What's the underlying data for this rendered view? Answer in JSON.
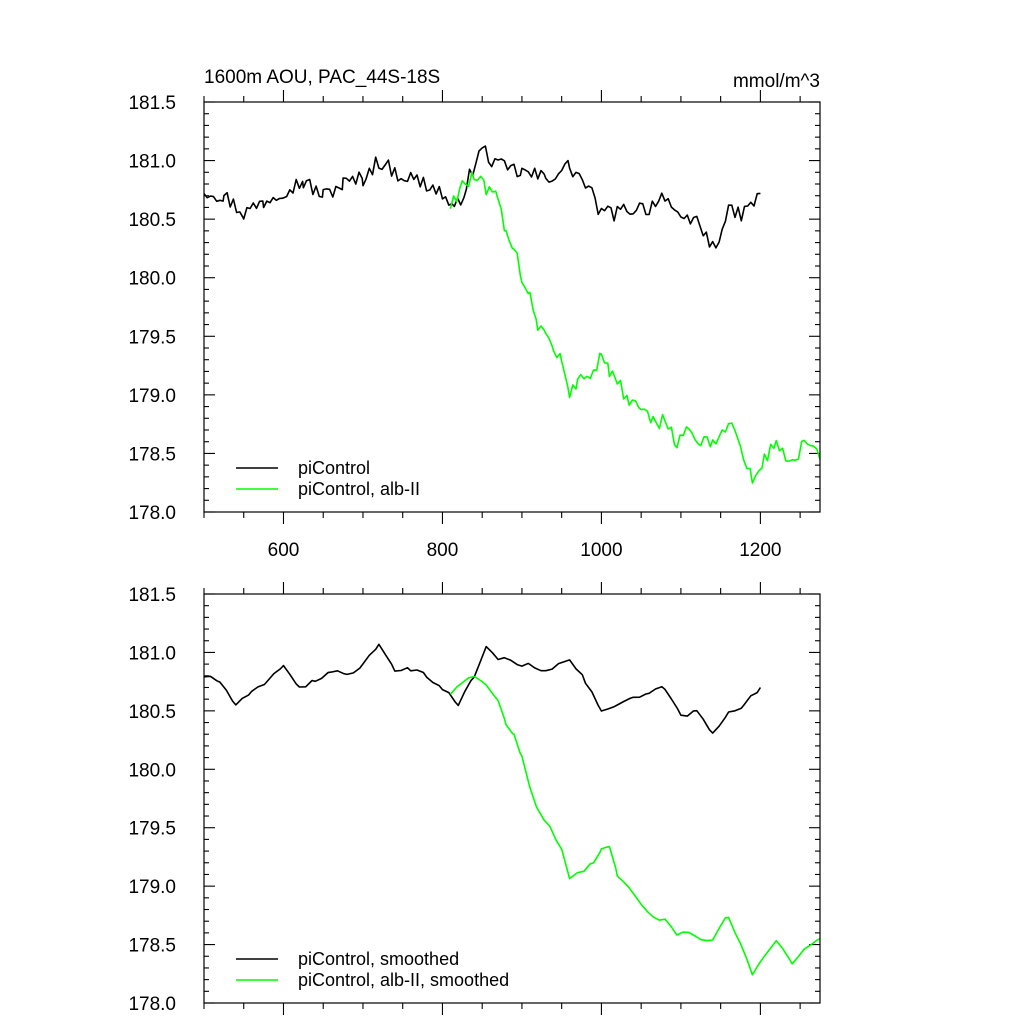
{
  "chart_data": [
    {
      "type": "line",
      "title_left": "1600m AOU, PAC_44S-18S",
      "title_right": "mmol/m^3",
      "xlabel": "",
      "ylabel": "",
      "xlim": [
        500,
        1275
      ],
      "ylim": [
        178.0,
        181.5
      ],
      "xticks": [
        600,
        800,
        1000,
        1200
      ],
      "xtick_labels": [
        "600",
        "800",
        "1000",
        "1200"
      ],
      "yticks": [
        178.0,
        178.5,
        179.0,
        179.5,
        180.0,
        180.5,
        181.0,
        181.5
      ],
      "ytick_labels": [
        "178.0",
        "178.5",
        "179.0",
        "179.5",
        "180.0",
        "180.5",
        "181.0",
        "181.5"
      ],
      "show_x_labels": true,
      "legend_position": "bottom-left",
      "series": [
        {
          "name": "piControl",
          "color": "#000000",
          "x": [
            500,
            525,
            550,
            575,
            600,
            625,
            650,
            675,
            700,
            720,
            740,
            760,
            780,
            800,
            815,
            830,
            850,
            870,
            900,
            930,
            960,
            980,
            1000,
            1020,
            1040,
            1060,
            1080,
            1100,
            1120,
            1140,
            1160,
            1180,
            1200
          ],
          "y": [
            180.75,
            180.7,
            180.55,
            180.65,
            180.75,
            180.82,
            180.7,
            180.8,
            180.85,
            181.0,
            180.9,
            180.85,
            180.8,
            180.72,
            180.55,
            180.8,
            181.1,
            180.95,
            180.9,
            180.85,
            180.95,
            180.8,
            180.55,
            180.55,
            180.6,
            180.6,
            180.72,
            180.45,
            180.5,
            180.25,
            180.55,
            180.55,
            180.72
          ]
        },
        {
          "name": "piControl, alb-II",
          "color": "#00ff00",
          "x": [
            810,
            825,
            840,
            855,
            870,
            880,
            890,
            900,
            910,
            920,
            930,
            940,
            950,
            960,
            970,
            990,
            1000,
            1010,
            1020,
            1035,
            1050,
            1065,
            1080,
            1095,
            1110,
            1125,
            1140,
            1160,
            1175,
            1190,
            1205,
            1220,
            1240,
            1255,
            1275
          ],
          "y": [
            180.62,
            180.8,
            180.85,
            180.75,
            180.65,
            180.35,
            180.3,
            180.0,
            179.85,
            179.6,
            179.55,
            179.35,
            179.3,
            178.95,
            179.15,
            179.2,
            179.35,
            179.2,
            179.1,
            178.95,
            178.85,
            178.75,
            178.8,
            178.6,
            178.7,
            178.6,
            178.55,
            178.8,
            178.55,
            178.25,
            178.45,
            178.6,
            178.4,
            178.6,
            178.45
          ]
        }
      ]
    },
    {
      "type": "line",
      "xlabel": "",
      "ylabel": "",
      "xlim": [
        500,
        1275
      ],
      "ylim": [
        178.0,
        181.5
      ],
      "xticks": [
        600,
        800,
        1000,
        1200
      ],
      "yticks": [
        178.0,
        178.5,
        179.0,
        179.5,
        180.0,
        180.5,
        181.0,
        181.5
      ],
      "ytick_labels": [
        "178.0",
        "178.5",
        "179.0",
        "179.5",
        "180.0",
        "180.5",
        "181.0",
        "181.5"
      ],
      "show_x_labels": false,
      "legend_position": "bottom-left",
      "series": [
        {
          "name": "piControl, smoothed",
          "color": "#000000",
          "x": [
            500,
            520,
            540,
            560,
            580,
            600,
            620,
            640,
            660,
            680,
            700,
            720,
            740,
            760,
            780,
            800,
            820,
            840,
            855,
            870,
            900,
            930,
            960,
            980,
            1000,
            1020,
            1040,
            1060,
            1080,
            1100,
            1120,
            1140,
            1160,
            1180,
            1200
          ],
          "y": [
            180.8,
            180.75,
            180.55,
            180.65,
            180.75,
            180.9,
            180.7,
            180.75,
            180.85,
            180.8,
            180.9,
            181.05,
            180.85,
            180.85,
            180.8,
            180.7,
            180.55,
            180.8,
            181.05,
            180.95,
            180.9,
            180.85,
            180.95,
            180.75,
            180.5,
            180.55,
            180.6,
            180.65,
            180.7,
            180.45,
            180.5,
            180.3,
            180.5,
            180.55,
            180.7
          ]
        },
        {
          "name": "piControl, alb-II, smoothed",
          "color": "#00ff00",
          "x": [
            810,
            825,
            840,
            855,
            870,
            880,
            890,
            900,
            910,
            920,
            935,
            950,
            960,
            970,
            990,
            1000,
            1010,
            1020,
            1035,
            1050,
            1065,
            1080,
            1095,
            1110,
            1125,
            1140,
            1160,
            1175,
            1190,
            1205,
            1220,
            1240,
            1255,
            1275
          ],
          "y": [
            180.65,
            180.75,
            180.8,
            180.72,
            180.6,
            180.4,
            180.3,
            180.1,
            179.85,
            179.65,
            179.5,
            179.3,
            179.05,
            179.1,
            179.2,
            179.3,
            179.35,
            179.1,
            179.0,
            178.85,
            178.75,
            178.7,
            178.6,
            178.6,
            178.55,
            178.55,
            178.75,
            178.5,
            178.25,
            178.4,
            178.55,
            178.35,
            178.45,
            178.55
          ]
        }
      ]
    }
  ]
}
